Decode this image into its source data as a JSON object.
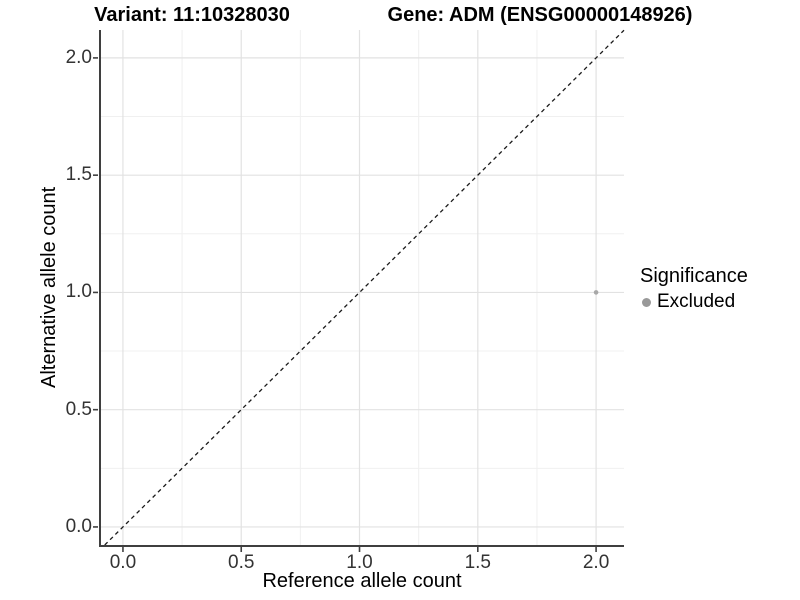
{
  "chart_data": {
    "type": "scatter",
    "titles": [
      "Variant: 11:10328030",
      "Gene: ADM (ENSG00000148926)"
    ],
    "xlabel": "Reference allele count",
    "ylabel": "Alternative allele count",
    "xlim": [
      -0.097,
      2.118
    ],
    "ylim": [
      -0.077,
      2.119
    ],
    "xticks": [
      0,
      0.5,
      1,
      1.5,
      2
    ],
    "yticks": [
      0,
      0.5,
      1,
      1.5,
      2
    ],
    "xtick_labels": [
      "0.0",
      "0.5",
      "1.0",
      "1.5",
      "2.0"
    ],
    "ytick_labels": [
      "0.0",
      "0.5",
      "1.0",
      "1.5",
      "2.0"
    ],
    "minor_xticks": [
      0.25,
      0.75,
      1.25,
      1.75
    ],
    "minor_yticks": [
      0.25,
      0.75,
      1.25,
      1.75
    ],
    "grid": "major+minor",
    "points": [
      {
        "x": 2,
        "y": 1,
        "series": "Excluded"
      }
    ],
    "identity_line": {
      "style": "dashed",
      "slope": 1,
      "intercept": 0,
      "color": "#1a1a1a"
    },
    "legend": {
      "position": "right",
      "title": "Significance",
      "entries": [
        {
          "label": "Excluded",
          "color": "#999999"
        }
      ]
    },
    "colors": {
      "point": "#a8a8a8",
      "grid_major": "#e2e2e2",
      "grid_minor": "#f0f0f0",
      "axis_line": "#3f3f3f",
      "tick_mark": "#3f3f3f",
      "tick_label": "#333333"
    }
  }
}
